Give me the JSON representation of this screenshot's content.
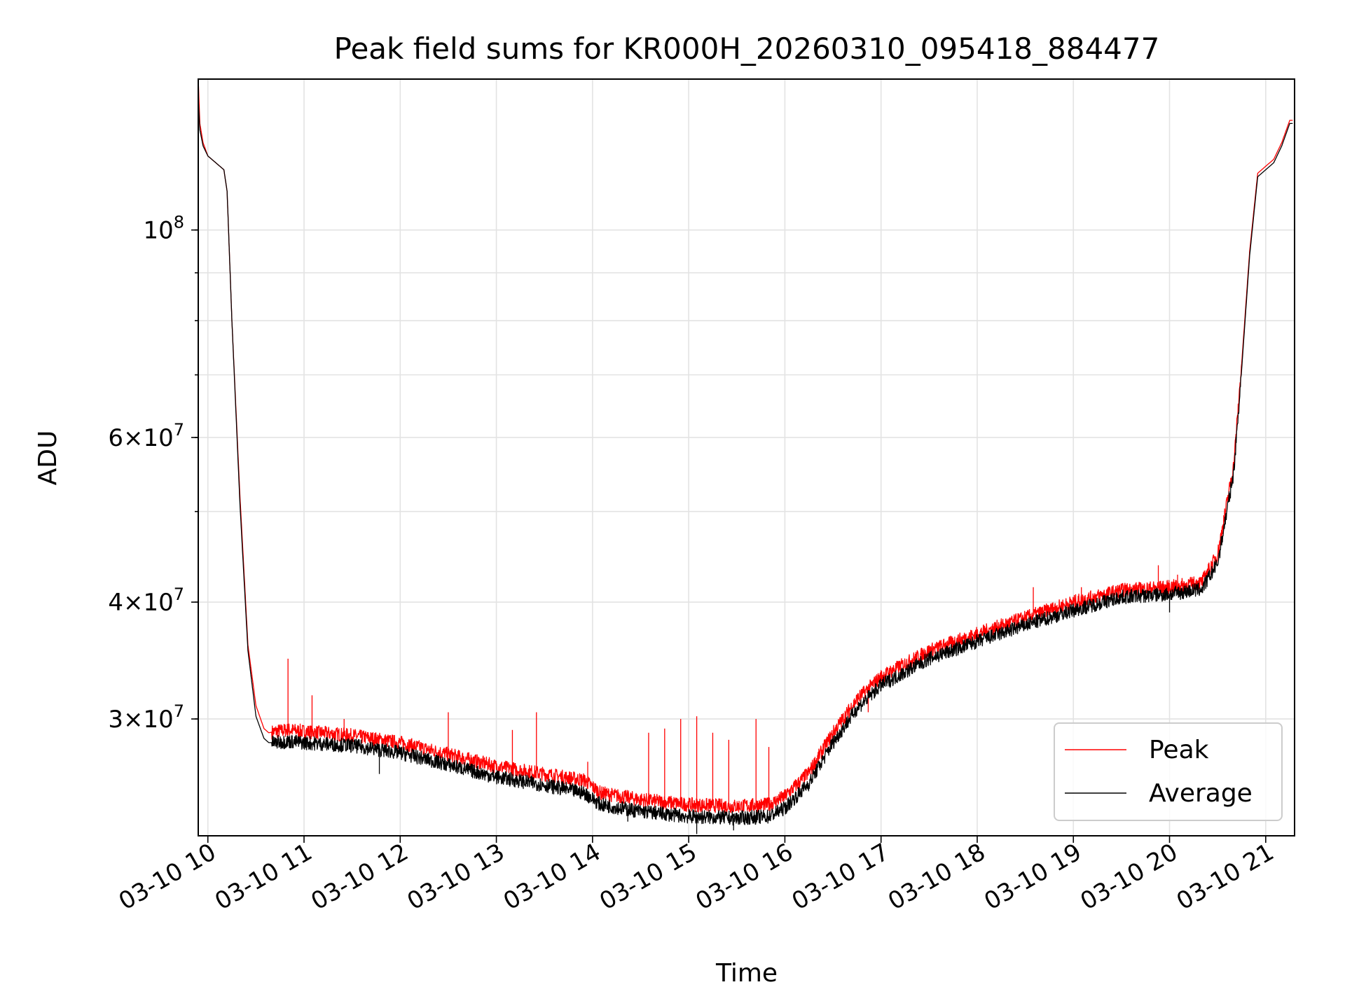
{
  "chart_data": {
    "type": "line",
    "title": "Peak field sums for KR000H_20260310_095418_884477",
    "xlabel": "Time",
    "ylabel": "ADU",
    "y_scale": "log",
    "ylim": [
      22500000,
      145000000
    ],
    "xlim": [
      "03-10 09:54",
      "03-10 21:18"
    ],
    "grid": true,
    "legend_position": "lower-right",
    "x_tick_labels": [
      "03-10 10",
      "03-10 11",
      "03-10 12",
      "03-10 13",
      "03-10 14",
      "03-10 15",
      "03-10 16",
      "03-10 17",
      "03-10 18",
      "03-10 19",
      "03-10 20",
      "03-10 21"
    ],
    "y_major_tick_labels": [
      {
        "base": "10",
        "exp": "8",
        "value": 100000000
      },
      {
        "mant": "6",
        "base": "10",
        "exp": "7",
        "value": 60000000
      },
      {
        "mant": "4",
        "base": "10",
        "exp": "7",
        "value": 40000000
      },
      {
        "mant": "3",
        "base": "10",
        "exp": "7",
        "value": 30000000
      }
    ],
    "series": [
      {
        "name": "Peak",
        "color": "#ff0000",
        "x": [
          "03-10 09:54",
          "03-10 09:55",
          "03-10 09:57",
          "03-10 10:00",
          "03-10 10:10",
          "03-10 10:12",
          "03-10 10:15",
          "03-10 10:20",
          "03-10 10:25",
          "03-10 10:30",
          "03-10 10:35",
          "03-10 10:38",
          "03-10 10:42",
          "03-10 10:50",
          "03-10 11:00",
          "03-10 11:30",
          "03-10 12:00",
          "03-10 12:30",
          "03-10 13:00",
          "03-10 13:30",
          "03-10 13:55",
          "03-10 14:05",
          "03-10 14:30",
          "03-10 15:00",
          "03-10 15:30",
          "03-10 15:50",
          "03-10 16:00",
          "03-10 16:15",
          "03-10 16:30",
          "03-10 16:45",
          "03-10 17:00",
          "03-10 17:30",
          "03-10 18:00",
          "03-10 18:30",
          "03-10 19:00",
          "03-10 19:30",
          "03-10 20:00",
          "03-10 20:20",
          "03-10 20:30",
          "03-10 20:40",
          "03-10 20:45",
          "03-10 20:50",
          "03-10 20:55",
          "03-10 21:00",
          "03-10 21:05",
          "03-10 21:10",
          "03-10 21:15",
          "03-10 21:17"
        ],
        "y": [
          145000000,
          130000000,
          124000000,
          120000000,
          116000000,
          110000000,
          80000000,
          52000000,
          36000000,
          31000000,
          29300000,
          29000000,
          29100000,
          29200000,
          29100000,
          28800000,
          28300000,
          27500000,
          26700000,
          26200000,
          25800000,
          25000000,
          24600000,
          24300000,
          24200000,
          24300000,
          24800000,
          26300000,
          29000000,
          31500000,
          33300000,
          35500000,
          37000000,
          38500000,
          40000000,
          41200000,
          41500000,
          42000000,
          45000000,
          56000000,
          72000000,
          95000000,
          115000000,
          117000000,
          119000000,
          124000000,
          131000000,
          131000000
        ],
        "spikes": [
          {
            "x": "03-10 10:50",
            "y": 34800000
          },
          {
            "x": "03-10 11:05",
            "y": 31800000
          },
          {
            "x": "03-10 11:25",
            "y": 30000000
          },
          {
            "x": "03-10 12:30",
            "y": 30500000
          },
          {
            "x": "03-10 13:10",
            "y": 29200000
          },
          {
            "x": "03-10 13:25",
            "y": 30500000
          },
          {
            "x": "03-10 13:57",
            "y": 27000000
          },
          {
            "x": "03-10 14:35",
            "y": 29000000
          },
          {
            "x": "03-10 14:45",
            "y": 29300000
          },
          {
            "x": "03-10 14:55",
            "y": 30000000
          },
          {
            "x": "03-10 15:05",
            "y": 30200000
          },
          {
            "x": "03-10 15:15",
            "y": 29000000
          },
          {
            "x": "03-10 15:25",
            "y": 28500000
          },
          {
            "x": "03-10 15:42",
            "y": 30000000
          },
          {
            "x": "03-10 15:50",
            "y": 28000000
          },
          {
            "x": "03-10 16:40",
            "y": 30000000
          },
          {
            "x": "03-10 16:52",
            "y": 30500000
          },
          {
            "x": "03-10 17:40",
            "y": 35200000
          },
          {
            "x": "03-10 18:35",
            "y": 41500000
          },
          {
            "x": "03-10 19:05",
            "y": 41500000
          },
          {
            "x": "03-10 19:53",
            "y": 43800000
          },
          {
            "x": "03-10 20:05",
            "y": 42800000
          },
          {
            "x": "03-10 20:18",
            "y": 42200000
          }
        ]
      },
      {
        "name": "Average",
        "color": "#000000",
        "x": [
          "03-10 09:54",
          "03-10 09:55",
          "03-10 09:57",
          "03-10 10:00",
          "03-10 10:10",
          "03-10 10:12",
          "03-10 10:15",
          "03-10 10:20",
          "03-10 10:25",
          "03-10 10:30",
          "03-10 10:35",
          "03-10 10:38",
          "03-10 10:42",
          "03-10 10:50",
          "03-10 11:00",
          "03-10 11:30",
          "03-10 12:00",
          "03-10 12:30",
          "03-10 13:00",
          "03-10 13:30",
          "03-10 13:55",
          "03-10 14:05",
          "03-10 14:30",
          "03-10 15:00",
          "03-10 15:30",
          "03-10 15:50",
          "03-10 16:00",
          "03-10 16:15",
          "03-10 16:30",
          "03-10 16:45",
          "03-10 17:00",
          "03-10 17:30",
          "03-10 18:00",
          "03-10 18:30",
          "03-10 19:00",
          "03-10 19:30",
          "03-10 20:00",
          "03-10 20:20",
          "03-10 20:30",
          "03-10 20:40",
          "03-10 20:45",
          "03-10 20:50",
          "03-10 20:55",
          "03-10 21:00",
          "03-10 21:05",
          "03-10 21:10",
          "03-10 21:15",
          "03-10 21:17"
        ],
        "y": [
          138000000,
          128000000,
          123000000,
          120000000,
          116000000,
          110000000,
          80000000,
          51000000,
          35500000,
          30200000,
          28600000,
          28300000,
          28300000,
          28400000,
          28300000,
          28100000,
          27600000,
          26800000,
          26000000,
          25500000,
          25000000,
          24300000,
          23900000,
          23600000,
          23500000,
          23600000,
          24100000,
          25600000,
          28300000,
          30800000,
          32600000,
          34800000,
          36300000,
          37800000,
          39200000,
          40500000,
          40800000,
          41300000,
          44000000,
          55000000,
          71000000,
          94000000,
          114000000,
          116000000,
          118000000,
          123000000,
          130000000,
          130000000
        ],
        "dips": [
          {
            "x": "03-10 11:47",
            "y": 26200000
          },
          {
            "x": "03-10 14:22",
            "y": 23300000
          },
          {
            "x": "03-10 15:05",
            "y": 22600000
          },
          {
            "x": "03-10 15:28",
            "y": 22800000
          },
          {
            "x": "03-10 20:00",
            "y": 39000000
          }
        ]
      }
    ]
  }
}
